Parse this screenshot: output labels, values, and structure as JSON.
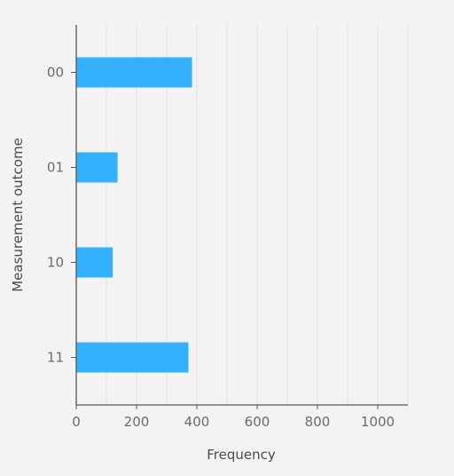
{
  "chart_data": {
    "type": "bar",
    "orientation": "horizontal",
    "categories": [
      "00",
      "01",
      "10",
      "11"
    ],
    "values": [
      384,
      137,
      121,
      372
    ],
    "xlabel": "Frequency",
    "ylabel": "Measurement outcome",
    "xlim": [
      0,
      1100
    ],
    "xticks": [
      0,
      200,
      400,
      600,
      800,
      1000
    ],
    "grid": "vertical",
    "colors": {
      "bar": "#33b1ff",
      "background": "#f3f3f3",
      "grid": "#e2e2e2",
      "axis": "#555555"
    }
  }
}
